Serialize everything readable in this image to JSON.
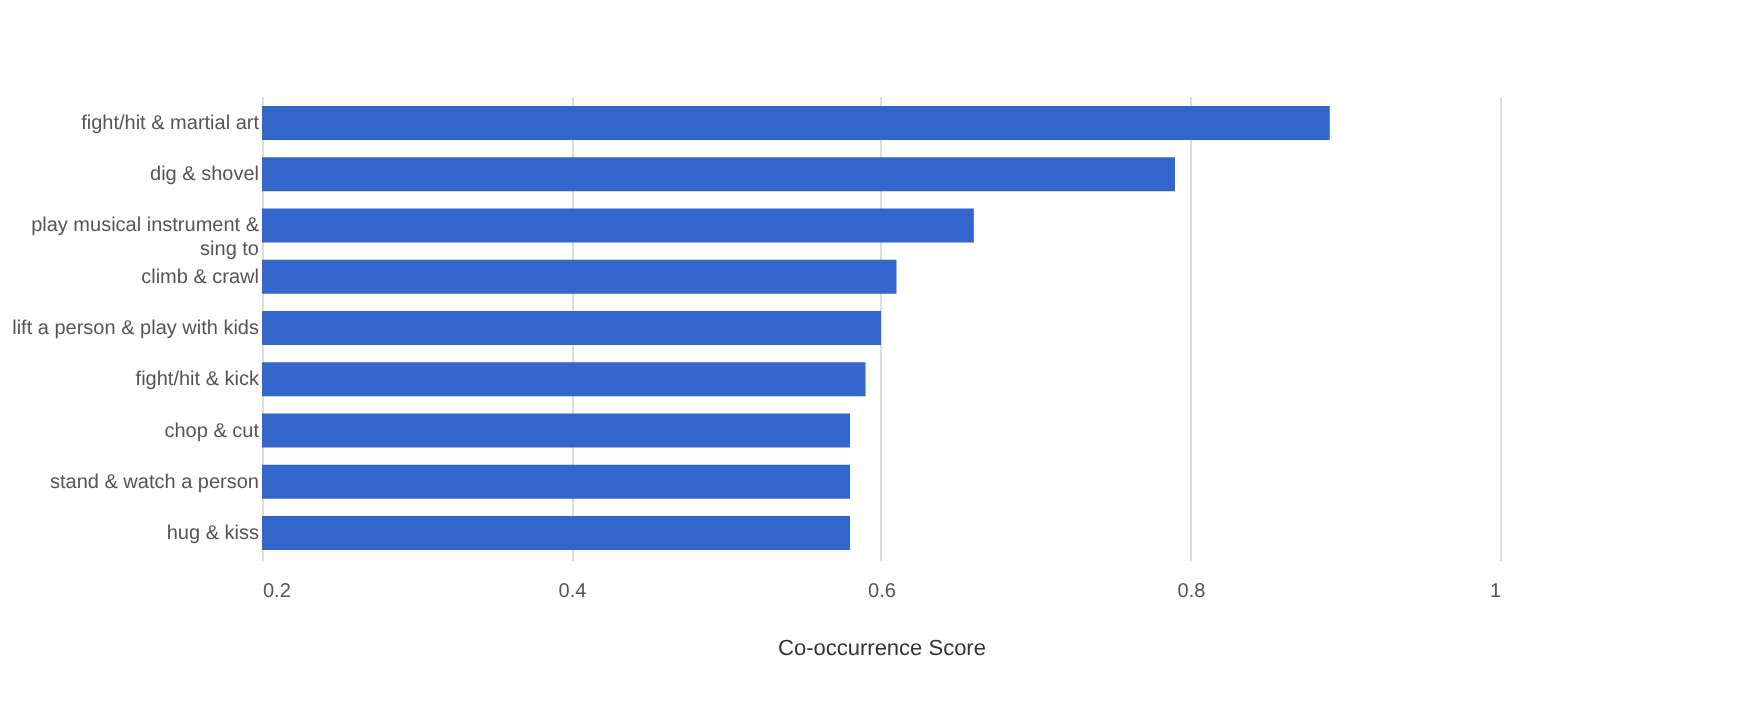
{
  "chart_data": {
    "type": "bar",
    "orientation": "horizontal",
    "xlabel": "Co-occurrence Score",
    "categories": [
      "fight/hit & martial art",
      "dig & shovel",
      "play musical instrument & sing to",
      "climb & crawl",
      "lift a person & play with kids",
      "fight/hit & kick",
      "chop & cut",
      "stand & watch a person",
      "hug & kiss"
    ],
    "values": [
      0.89,
      0.79,
      0.66,
      0.61,
      0.6,
      0.59,
      0.58,
      0.58,
      0.58
    ],
    "color": "#3366cc",
    "xlim": [
      0.2,
      1
    ],
    "xticks": [
      0.2,
      0.4,
      0.6,
      0.8,
      1
    ],
    "grid": "x"
  }
}
